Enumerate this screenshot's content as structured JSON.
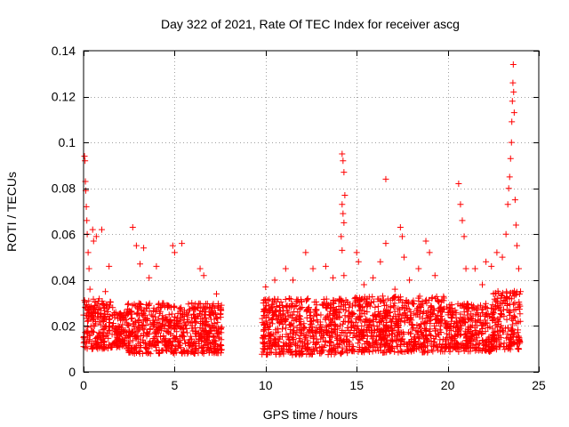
{
  "chart_data": {
    "type": "scatter",
    "title": "Day 322 of 2021, Rate Of TEC Index for receiver ascg",
    "xlabel": "GPS time / hours",
    "ylabel": "ROTI / TECUs",
    "xlim": [
      0,
      25
    ],
    "ylim": [
      0,
      0.14
    ],
    "x_ticks": [
      0,
      5,
      10,
      15,
      20,
      25
    ],
    "x_tick_labels": [
      "0",
      "5",
      "10",
      "15",
      "20",
      "25"
    ],
    "y_ticks": [
      0,
      0.02,
      0.04,
      0.06,
      0.08,
      0.1,
      0.12,
      0.14
    ],
    "y_tick_labels": [
      "0",
      "0.02",
      "0.04",
      "0.06",
      "0.08",
      "0.1",
      "0.12",
      "0.14"
    ],
    "grid": true,
    "marker": "+",
    "color": "#ff0000",
    "data_gap_hours": [
      7.6,
      9.8
    ],
    "series": [
      {
        "name": "ROTI",
        "points": [
          [
            0.0,
            0.015
          ],
          [
            0.05,
            0.094
          ],
          [
            0.08,
            0.092
          ],
          [
            0.1,
            0.083
          ],
          [
            0.12,
            0.079
          ],
          [
            0.15,
            0.072
          ],
          [
            0.18,
            0.066
          ],
          [
            0.2,
            0.06
          ],
          [
            0.25,
            0.052
          ],
          [
            0.3,
            0.045
          ],
          [
            0.35,
            0.036
          ],
          [
            0.4,
            0.028
          ],
          [
            0.6,
            0.02
          ],
          [
            0.5,
            0.062
          ],
          [
            0.55,
            0.057
          ],
          [
            0.7,
            0.059
          ],
          [
            1.0,
            0.062
          ],
          [
            1.2,
            0.035
          ],
          [
            1.4,
            0.046
          ],
          [
            1.6,
            0.028
          ],
          [
            2.7,
            0.063
          ],
          [
            2.9,
            0.055
          ],
          [
            3.1,
            0.047
          ],
          [
            3.3,
            0.054
          ],
          [
            3.6,
            0.041
          ],
          [
            4.0,
            0.046
          ],
          [
            4.9,
            0.055
          ],
          [
            5.0,
            0.052
          ],
          [
            5.4,
            0.056
          ],
          [
            6.4,
            0.045
          ],
          [
            6.6,
            0.042
          ],
          [
            7.3,
            0.034
          ],
          [
            10.0,
            0.037
          ],
          [
            10.5,
            0.04
          ],
          [
            11.1,
            0.045
          ],
          [
            11.5,
            0.04
          ],
          [
            12.2,
            0.052
          ],
          [
            12.6,
            0.045
          ],
          [
            13.3,
            0.046
          ],
          [
            13.7,
            0.041
          ],
          [
            14.2,
            0.095
          ],
          [
            14.25,
            0.092
          ],
          [
            14.3,
            0.087
          ],
          [
            14.35,
            0.077
          ],
          [
            14.2,
            0.073
          ],
          [
            14.25,
            0.069
          ],
          [
            14.3,
            0.065
          ],
          [
            14.15,
            0.059
          ],
          [
            14.2,
            0.053
          ],
          [
            14.3,
            0.042
          ],
          [
            15.0,
            0.052
          ],
          [
            15.1,
            0.048
          ],
          [
            15.4,
            0.038
          ],
          [
            15.9,
            0.041
          ],
          [
            16.3,
            0.048
          ],
          [
            16.6,
            0.084
          ],
          [
            16.6,
            0.056
          ],
          [
            17.1,
            0.036
          ],
          [
            17.4,
            0.063
          ],
          [
            17.5,
            0.059
          ],
          [
            17.6,
            0.05
          ],
          [
            17.9,
            0.04
          ],
          [
            18.4,
            0.045
          ],
          [
            18.8,
            0.057
          ],
          [
            19.0,
            0.052
          ],
          [
            19.3,
            0.042
          ],
          [
            19.7,
            0.026
          ],
          [
            20.2,
            0.022
          ],
          [
            20.6,
            0.082
          ],
          [
            20.7,
            0.073
          ],
          [
            20.8,
            0.066
          ],
          [
            20.9,
            0.059
          ],
          [
            21.0,
            0.045
          ],
          [
            21.5,
            0.045
          ],
          [
            21.9,
            0.038
          ],
          [
            22.1,
            0.048
          ],
          [
            22.4,
            0.046
          ],
          [
            22.7,
            0.052
          ],
          [
            23.0,
            0.05
          ],
          [
            23.2,
            0.06
          ],
          [
            23.3,
            0.073
          ],
          [
            23.35,
            0.08
          ],
          [
            23.4,
            0.085
          ],
          [
            23.45,
            0.093
          ],
          [
            23.5,
            0.1
          ],
          [
            23.52,
            0.109
          ],
          [
            23.55,
            0.118
          ],
          [
            23.58,
            0.126
          ],
          [
            23.6,
            0.134
          ],
          [
            23.62,
            0.122
          ],
          [
            23.65,
            0.113
          ],
          [
            23.7,
            0.075
          ],
          [
            23.75,
            0.064
          ],
          [
            23.8,
            0.055
          ],
          [
            23.9,
            0.045
          ],
          [
            24.0,
            0.035
          ]
        ],
        "dense_segments": [
          {
            "x_range": [
              0.0,
              1.6
            ],
            "y_range": [
              0.006,
              0.032
            ]
          },
          {
            "x_range": [
              1.6,
              2.4
            ],
            "y_range": [
              0.008,
              0.026
            ]
          },
          {
            "x_range": [
              2.4,
              7.6
            ],
            "y_range": [
              0.004,
              0.03
            ]
          },
          {
            "x_range": [
              9.8,
              14.5
            ],
            "y_range": [
              0.003,
              0.032
            ]
          },
          {
            "x_range": [
              14.5,
              19.8
            ],
            "y_range": [
              0.004,
              0.033
            ]
          },
          {
            "x_range": [
              19.8,
              22.5
            ],
            "y_range": [
              0.005,
              0.03
            ]
          },
          {
            "x_range": [
              22.5,
              24.0
            ],
            "y_range": [
              0.005,
              0.036
            ]
          }
        ]
      }
    ]
  }
}
